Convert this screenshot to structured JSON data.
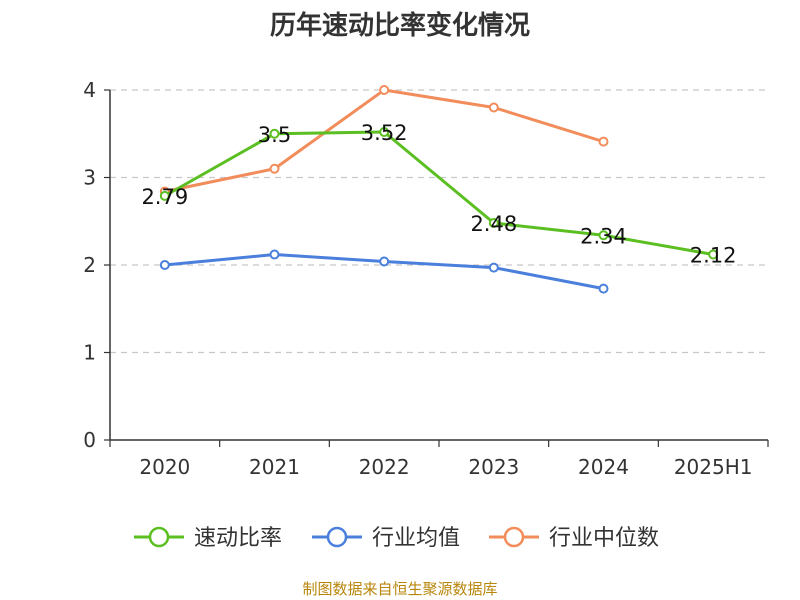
{
  "chart_data": {
    "type": "line",
    "title": "历年速动比率变化情况",
    "categories": [
      "2020",
      "2021",
      "2022",
      "2023",
      "2024",
      "2025H1"
    ],
    "ylim": [
      0,
      4
    ],
    "yticks": [
      "0",
      "1",
      "2",
      "3",
      "4"
    ],
    "grid": true,
    "legend_position": "bottom",
    "series": [
      {
        "name": "速动比率",
        "color": "#5bbf21",
        "values": [
          2.79,
          3.5,
          3.52,
          2.48,
          2.34,
          2.12
        ],
        "labels": [
          "2.79",
          "3.5",
          "3.52",
          "2.48",
          "2.34",
          "2.12"
        ]
      },
      {
        "name": "行业均值",
        "color": "#4a7fdc",
        "values": [
          2.0,
          2.12,
          2.04,
          1.97,
          1.73,
          null
        ]
      },
      {
        "name": "行业中位数",
        "color": "#f28c5a",
        "values": [
          2.84,
          3.1,
          4.0,
          3.8,
          3.41,
          null
        ]
      }
    ]
  },
  "source": "制图数据来自恒生聚源数据库"
}
